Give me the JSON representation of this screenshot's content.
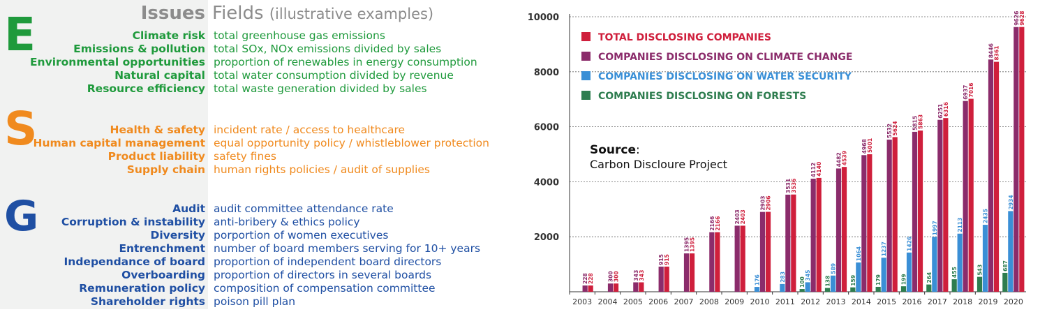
{
  "header": {
    "issues": "Issues",
    "fields": "Fields",
    "fields_sub": "(illustrative examples)"
  },
  "groups": [
    {
      "letter": "E",
      "color": "#1f9a3c",
      "rows": [
        {
          "issue": "Climate risk",
          "field": "total greenhouse gas emissions"
        },
        {
          "issue": "Emissions & pollution",
          "field": "total SOx, NOx emissions divided by sales"
        },
        {
          "issue": "Environmental opportunities",
          "field": "proportion of renewables in energy consumption"
        },
        {
          "issue": "Natural capital",
          "field": "total water consumption divided by revenue"
        },
        {
          "issue": "Resource efficiency",
          "field": "total waste generation divided by sales"
        }
      ]
    },
    {
      "letter": "S",
      "color": "#f08a1e",
      "rows": [
        {
          "issue": "Health & safety",
          "field": "incident rate / access to healthcare"
        },
        {
          "issue": "Human capital management",
          "field": "equal opportunity policy / whistleblower protection"
        },
        {
          "issue": "Product liability",
          "field": "safety fines"
        },
        {
          "issue": "Supply chain",
          "field": "human rights policies / audit of supplies"
        }
      ]
    },
    {
      "letter": "G",
      "color": "#1f4fa3",
      "rows": [
        {
          "issue": "Audit",
          "field": "audit committee attendance rate"
        },
        {
          "issue": "Corruption & instability",
          "field": "anti-bribery & ethics policy"
        },
        {
          "issue": "Diversity",
          "field": "porportion of women executives"
        },
        {
          "issue": "Entrenchment",
          "field": "number of board members serving for 10+ years"
        },
        {
          "issue": "Independance of board",
          "field": "proportion of independent board directors"
        },
        {
          "issue": "Overboarding",
          "field": "proportion of directors in several boards"
        },
        {
          "issue": "Remuneration policy",
          "field": "composition of compensation committee"
        },
        {
          "issue": "Shareholder rights",
          "field": "poison pill plan"
        }
      ]
    }
  ],
  "chart_data": {
    "type": "bar",
    "categories": [
      "2003",
      "2004",
      "2005",
      "2006",
      "2007",
      "2008",
      "2009",
      "2010",
      "2011",
      "2012",
      "2013",
      "2014",
      "2015",
      "2016",
      "2017",
      "2018",
      "2019",
      "2020"
    ],
    "ylim": [
      0,
      10000
    ],
    "yticks": [
      2000,
      4000,
      6000,
      8000,
      10000
    ],
    "grid": "horizontal dotted",
    "legend_position": "top-left",
    "source_label": "Source",
    "source_text": "Carbon Discloure Project",
    "series": [
      {
        "name": "FORESTS",
        "legend": "COMPANIES DISCLOSING ON FORESTS",
        "color": "#2e7d4f",
        "values": [
          null,
          null,
          null,
          null,
          null,
          null,
          null,
          null,
          null,
          100,
          138,
          159,
          179,
          199,
          264,
          455,
          543,
          687
        ]
      },
      {
        "name": "WATER",
        "legend": "COMPANIES DISCLOSING ON WATER SECURITY",
        "color": "#3a8fd6",
        "values": [
          null,
          null,
          null,
          null,
          null,
          null,
          null,
          176,
          283,
          345,
          589,
          1064,
          1237,
          1426,
          1997,
          2113,
          2435,
          2934
        ]
      },
      {
        "name": "CLIMATE",
        "legend": "COMPANIES DISCLOSING ON CLIMATE CHANGE",
        "color": "#8b2c6b",
        "values": [
          228,
          300,
          343,
          915,
          1395,
          2166,
          2403,
          2903,
          3531,
          4112,
          4482,
          4968,
          5532,
          5815,
          6251,
          6937,
          8446,
          9626
        ]
      },
      {
        "name": "TOTAL",
        "legend": "TOTAL DISCLOSING COMPANIES",
        "color": "#cf1f3c",
        "values": [
          228,
          300,
          343,
          915,
          1395,
          2166,
          2403,
          2906,
          3536,
          4140,
          4539,
          5001,
          5624,
          5863,
          6316,
          7016,
          8361,
          9628
        ]
      }
    ],
    "legend_order": [
      "TOTAL",
      "CLIMATE",
      "WATER",
      "FORESTS"
    ]
  }
}
